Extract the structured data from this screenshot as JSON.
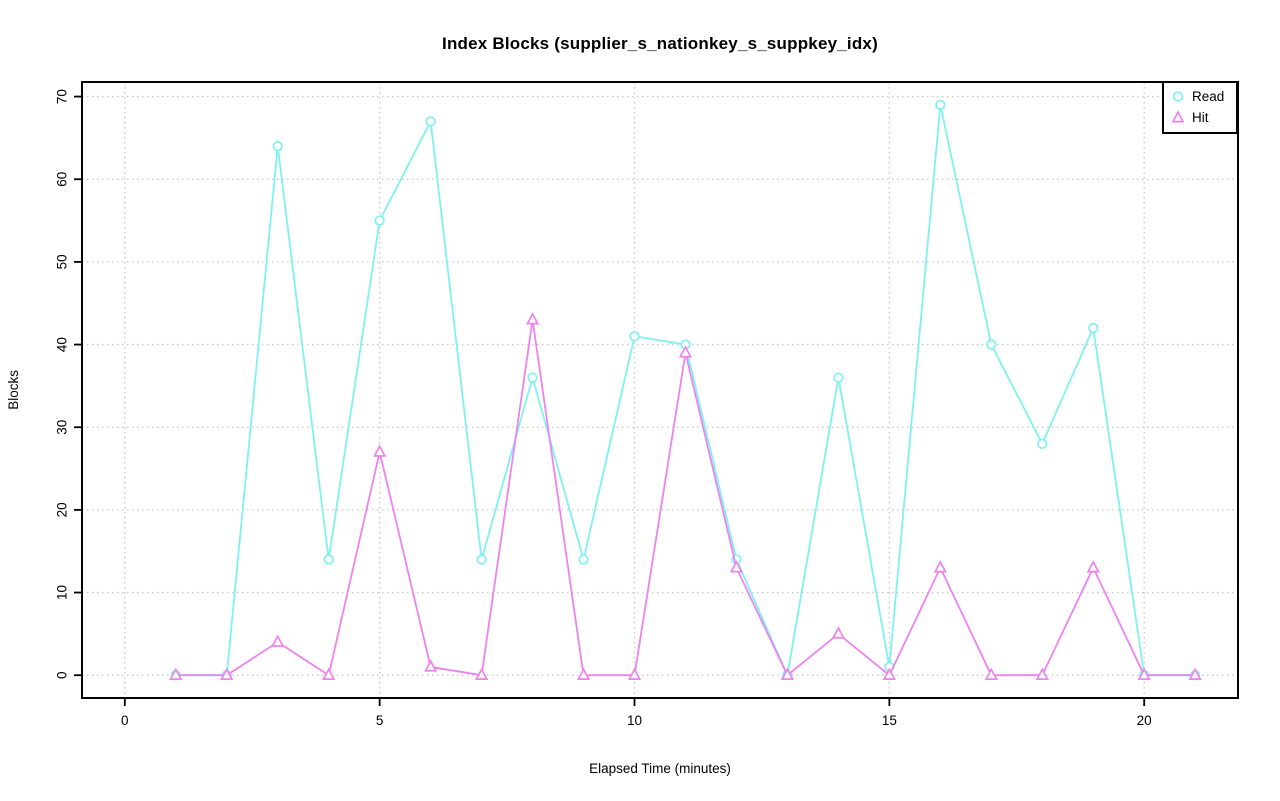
{
  "title": "Index Blocks (supplier_s_nationkey_s_suppkey_idx)",
  "chart_data": {
    "type": "line",
    "title": "Index Blocks (supplier_s_nationkey_s_suppkey_idx)",
    "xlabel": "Elapsed Time (minutes)",
    "ylabel": "Blocks",
    "x": [
      1,
      2,
      3,
      4,
      5,
      6,
      7,
      8,
      9,
      10,
      11,
      12,
      13,
      14,
      15,
      16,
      17,
      18,
      19,
      20,
      21
    ],
    "series": [
      {
        "name": "Read",
        "marker": "circle",
        "color": "#7DF2F0",
        "values": [
          0,
          0,
          64,
          14,
          55,
          67,
          14,
          36,
          14,
          41,
          40,
          14,
          0,
          36,
          1,
          69,
          40,
          28,
          42,
          0,
          0
        ]
      },
      {
        "name": "Hit",
        "marker": "triangle",
        "color": "#EE82EE",
        "values": [
          0,
          0,
          4,
          0,
          27,
          1,
          0,
          43,
          0,
          0,
          39,
          13,
          0,
          5,
          0,
          13,
          0,
          0,
          13,
          0,
          0
        ]
      }
    ],
    "xticks": [
      0,
      5,
      10,
      15,
      20
    ],
    "yticks": [
      0,
      10,
      20,
      30,
      40,
      50,
      60,
      70
    ],
    "xlim": [
      -0.84,
      21.84
    ],
    "ylim": [
      -2.76,
      71.76
    ],
    "grid": true,
    "grid_style": "dotted",
    "legend_position": "top-right",
    "legend": [
      "Read",
      "Hit"
    ],
    "colors": {
      "grid": "#C8C8C8",
      "axis": "#000000",
      "background": "#FFFFFF",
      "read": "#7DF2F0",
      "hit": "#EE82EE"
    }
  }
}
